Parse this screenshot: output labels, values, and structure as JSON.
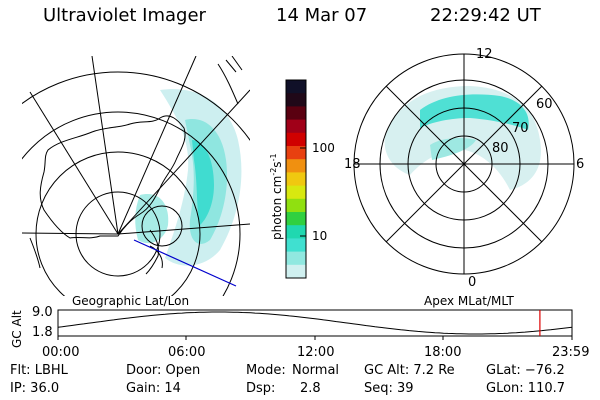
{
  "header": {
    "instrument": "Ultraviolet Imager",
    "date": "14 Mar 07",
    "time": "22:29:42 UT"
  },
  "left_panel": {
    "caption": "Geographic Lat/Lon"
  },
  "right_panel": {
    "caption": "Apex MLat/MLT",
    "mlt_labels": [
      "12",
      "18",
      "6",
      "0"
    ],
    "lat_labels": [
      "60",
      "70",
      "80"
    ]
  },
  "colorbar": {
    "unit_label": "photon cm",
    "unit_sup1": "-2",
    "unit_mid": "s",
    "unit_sup2": "-1",
    "tick_labels": [
      "100",
      "10"
    ],
    "scale": "log",
    "colors_top_to_bottom": [
      "#101028",
      "#200818",
      "#5a0010",
      "#a00018",
      "#d00000",
      "#e84010",
      "#f09010",
      "#f0c810",
      "#d8e810",
      "#90e010",
      "#30d040",
      "#20d8b0",
      "#40e0d0",
      "#90e8e0",
      "#d0f0f0"
    ]
  },
  "timeline": {
    "y_axis_label": "GC Alt",
    "y_ticks": [
      "9.0",
      "1.8"
    ],
    "x_ticks": [
      "00:00",
      "06:00",
      "12:00",
      "18:00",
      "23:59"
    ],
    "marker_time_hours": 22.5,
    "marker_color": "#dd0000"
  },
  "info": {
    "row1": {
      "filter": "Flt: LBHL",
      "door": "Door: Open",
      "mode_label": "Mode:",
      "mode_value": "Normal",
      "gcalt": "GC Alt: 7.2 Re",
      "glat": "GLat: −76.2"
    },
    "row2": {
      "ip": "IP: 36.0",
      "gain": "Gain: 14",
      "dsp_label": "Dsp:",
      "dsp_value": "2.8",
      "seq": "Seq: 39",
      "glon": "GLon: 110.7"
    }
  }
}
